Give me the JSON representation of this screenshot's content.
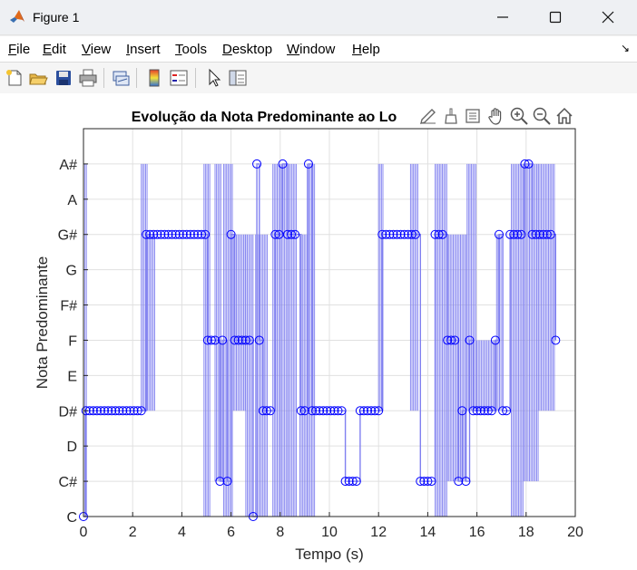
{
  "window": {
    "title": "Figure 1",
    "controls": [
      "minimize",
      "maximize",
      "close"
    ]
  },
  "menu": [
    {
      "label": "File",
      "u": "F",
      "rest": "ile"
    },
    {
      "label": "Edit",
      "u": "E",
      "rest": "dit"
    },
    {
      "label": "View",
      "u": "V",
      "rest": "iew"
    },
    {
      "label": "Insert",
      "u": "I",
      "rest": "nsert"
    },
    {
      "label": "Tools",
      "u": "T",
      "rest": "ools"
    },
    {
      "label": "Desktop",
      "u": "D",
      "rest": "esktop"
    },
    {
      "label": "Window",
      "u": "W",
      "rest": "indow"
    },
    {
      "label": "Help",
      "u": "H",
      "rest": "elp"
    }
  ],
  "toolbar_icons": [
    "new-figure-icon",
    "open-file-icon",
    "save-icon",
    "print-icon",
    "link-plot-icon",
    "insert-colorbar-icon",
    "insert-legend-icon",
    "edit-plot-arrow-icon",
    "property-inspector-icon"
  ],
  "axes_toolbar_icons": [
    "export-icon",
    "brush-icon",
    "data-tips-icon",
    "pan-icon",
    "zoom-in-icon",
    "zoom-out-icon",
    "home-icon"
  ],
  "chart_data": {
    "type": "line",
    "title": "Evolução da Nota Predominante ao Lo",
    "xlabel": "Tempo (s)",
    "ylabel": "Nota Predominante",
    "xlim": [
      0,
      20
    ],
    "xticks": [
      0,
      2,
      4,
      6,
      8,
      10,
      12,
      14,
      16,
      18,
      20
    ],
    "ylim": [
      0,
      11
    ],
    "yticklabels": [
      "C",
      "C#",
      "D",
      "D#",
      "E",
      "F",
      "F#",
      "G",
      "G#",
      "A",
      "A#"
    ],
    "grid": true,
    "line_color": "#8080f0",
    "marker_color": "#0000ff",
    "markers": [
      {
        "x": 0.0,
        "y": 0
      },
      {
        "x": 0.1,
        "y": 3
      },
      {
        "x": 0.25,
        "y": 3
      },
      {
        "x": 0.4,
        "y": 3
      },
      {
        "x": 0.55,
        "y": 3
      },
      {
        "x": 0.7,
        "y": 3
      },
      {
        "x": 0.85,
        "y": 3
      },
      {
        "x": 1.0,
        "y": 3
      },
      {
        "x": 1.15,
        "y": 3
      },
      {
        "x": 1.3,
        "y": 3
      },
      {
        "x": 1.45,
        "y": 3
      },
      {
        "x": 1.6,
        "y": 3
      },
      {
        "x": 1.75,
        "y": 3
      },
      {
        "x": 1.9,
        "y": 3
      },
      {
        "x": 2.05,
        "y": 3
      },
      {
        "x": 2.2,
        "y": 3
      },
      {
        "x": 2.35,
        "y": 3
      },
      {
        "x": 2.55,
        "y": 8
      },
      {
        "x": 2.7,
        "y": 8
      },
      {
        "x": 2.85,
        "y": 8
      },
      {
        "x": 3.0,
        "y": 8
      },
      {
        "x": 3.15,
        "y": 8
      },
      {
        "x": 3.3,
        "y": 8
      },
      {
        "x": 3.45,
        "y": 8
      },
      {
        "x": 3.6,
        "y": 8
      },
      {
        "x": 3.75,
        "y": 8
      },
      {
        "x": 3.9,
        "y": 8
      },
      {
        "x": 4.05,
        "y": 8
      },
      {
        "x": 4.2,
        "y": 8
      },
      {
        "x": 4.35,
        "y": 8
      },
      {
        "x": 4.5,
        "y": 8
      },
      {
        "x": 4.65,
        "y": 8
      },
      {
        "x": 4.8,
        "y": 8
      },
      {
        "x": 4.95,
        "y": 8
      },
      {
        "x": 5.05,
        "y": 5
      },
      {
        "x": 5.2,
        "y": 5
      },
      {
        "x": 5.35,
        "y": 5
      },
      {
        "x": 5.55,
        "y": 1
      },
      {
        "x": 5.65,
        "y": 5
      },
      {
        "x": 5.85,
        "y": 1
      },
      {
        "x": 6.0,
        "y": 8
      },
      {
        "x": 6.15,
        "y": 5
      },
      {
        "x": 6.3,
        "y": 5
      },
      {
        "x": 6.45,
        "y": 5
      },
      {
        "x": 6.6,
        "y": 5
      },
      {
        "x": 6.75,
        "y": 5
      },
      {
        "x": 6.9,
        "y": 0
      },
      {
        "x": 7.05,
        "y": 10
      },
      {
        "x": 7.15,
        "y": 5
      },
      {
        "x": 7.3,
        "y": 3
      },
      {
        "x": 7.45,
        "y": 3
      },
      {
        "x": 7.6,
        "y": 3
      },
      {
        "x": 7.8,
        "y": 8
      },
      {
        "x": 7.95,
        "y": 8
      },
      {
        "x": 8.1,
        "y": 10
      },
      {
        "x": 8.3,
        "y": 8
      },
      {
        "x": 8.45,
        "y": 8
      },
      {
        "x": 8.6,
        "y": 8
      },
      {
        "x": 8.85,
        "y": 3
      },
      {
        "x": 9.0,
        "y": 3
      },
      {
        "x": 9.15,
        "y": 10
      },
      {
        "x": 9.3,
        "y": 3
      },
      {
        "x": 9.45,
        "y": 3
      },
      {
        "x": 9.6,
        "y": 3
      },
      {
        "x": 9.75,
        "y": 3
      },
      {
        "x": 9.9,
        "y": 3
      },
      {
        "x": 10.05,
        "y": 3
      },
      {
        "x": 10.2,
        "y": 3
      },
      {
        "x": 10.35,
        "y": 3
      },
      {
        "x": 10.5,
        "y": 3
      },
      {
        "x": 10.65,
        "y": 1
      },
      {
        "x": 10.8,
        "y": 1
      },
      {
        "x": 10.95,
        "y": 1
      },
      {
        "x": 11.1,
        "y": 1
      },
      {
        "x": 11.25,
        "y": 3
      },
      {
        "x": 11.4,
        "y": 3
      },
      {
        "x": 11.55,
        "y": 3
      },
      {
        "x": 11.7,
        "y": 3
      },
      {
        "x": 11.85,
        "y": 3
      },
      {
        "x": 12.0,
        "y": 3
      },
      {
        "x": 12.15,
        "y": 8
      },
      {
        "x": 12.3,
        "y": 8
      },
      {
        "x": 12.45,
        "y": 8
      },
      {
        "x": 12.6,
        "y": 8
      },
      {
        "x": 12.75,
        "y": 8
      },
      {
        "x": 12.9,
        "y": 8
      },
      {
        "x": 13.05,
        "y": 8
      },
      {
        "x": 13.2,
        "y": 8
      },
      {
        "x": 13.35,
        "y": 8
      },
      {
        "x": 13.5,
        "y": 8
      },
      {
        "x": 13.7,
        "y": 1
      },
      {
        "x": 13.85,
        "y": 1
      },
      {
        "x": 14.0,
        "y": 1
      },
      {
        "x": 14.15,
        "y": 1
      },
      {
        "x": 14.3,
        "y": 8
      },
      {
        "x": 14.45,
        "y": 8
      },
      {
        "x": 14.6,
        "y": 8
      },
      {
        "x": 14.8,
        "y": 5
      },
      {
        "x": 14.95,
        "y": 5
      },
      {
        "x": 15.1,
        "y": 5
      },
      {
        "x": 15.25,
        "y": 1
      },
      {
        "x": 15.4,
        "y": 3
      },
      {
        "x": 15.55,
        "y": 1
      },
      {
        "x": 15.7,
        "y": 5
      },
      {
        "x": 15.85,
        "y": 3
      },
      {
        "x": 16.0,
        "y": 3
      },
      {
        "x": 16.15,
        "y": 3
      },
      {
        "x": 16.3,
        "y": 3
      },
      {
        "x": 16.45,
        "y": 3
      },
      {
        "x": 16.6,
        "y": 3
      },
      {
        "x": 16.75,
        "y": 5
      },
      {
        "x": 16.9,
        "y": 8
      },
      {
        "x": 17.05,
        "y": 3
      },
      {
        "x": 17.2,
        "y": 3
      },
      {
        "x": 17.35,
        "y": 8
      },
      {
        "x": 17.5,
        "y": 8
      },
      {
        "x": 17.65,
        "y": 8
      },
      {
        "x": 17.8,
        "y": 8
      },
      {
        "x": 17.95,
        "y": 10
      },
      {
        "x": 18.1,
        "y": 10
      },
      {
        "x": 18.25,
        "y": 8
      },
      {
        "x": 18.4,
        "y": 8
      },
      {
        "x": 18.55,
        "y": 8
      },
      {
        "x": 18.7,
        "y": 8
      },
      {
        "x": 18.85,
        "y": 8
      },
      {
        "x": 19.0,
        "y": 8
      },
      {
        "x": 19.2,
        "y": 5
      }
    ],
    "dense_bands": [
      {
        "x0": 0.0,
        "x1": 0.12,
        "y0": 0,
        "y1": 10
      },
      {
        "x0": 2.35,
        "x1": 2.6,
        "y0": 3,
        "y1": 10
      },
      {
        "x0": 2.6,
        "x1": 2.9,
        "y0": 3,
        "y1": 8
      },
      {
        "x0": 4.9,
        "x1": 5.15,
        "y0": 0,
        "y1": 10
      },
      {
        "x0": 5.35,
        "x1": 5.6,
        "y0": 1,
        "y1": 10
      },
      {
        "x0": 5.7,
        "x1": 6.1,
        "y0": 0,
        "y1": 10
      },
      {
        "x0": 6.1,
        "x1": 6.6,
        "y0": 3,
        "y1": 8
      },
      {
        "x0": 6.6,
        "x1": 6.9,
        "y0": 0,
        "y1": 8
      },
      {
        "x0": 7.0,
        "x1": 7.5,
        "y0": 0,
        "y1": 8
      },
      {
        "x0": 7.7,
        "x1": 8.0,
        "y0": 0,
        "y1": 10
      },
      {
        "x0": 8.0,
        "x1": 8.3,
        "y0": 0,
        "y1": 10
      },
      {
        "x0": 8.3,
        "x1": 8.7,
        "y0": 0,
        "y1": 10
      },
      {
        "x0": 8.8,
        "x1": 9.1,
        "y0": 0,
        "y1": 8
      },
      {
        "x0": 9.1,
        "x1": 9.4,
        "y0": 0,
        "y1": 10
      },
      {
        "x0": 12.0,
        "x1": 12.2,
        "y0": 3,
        "y1": 10
      },
      {
        "x0": 13.3,
        "x1": 13.6,
        "y0": 3,
        "y1": 10
      },
      {
        "x0": 14.3,
        "x1": 14.8,
        "y0": 0,
        "y1": 10
      },
      {
        "x0": 14.8,
        "x1": 15.6,
        "y0": 1,
        "y1": 8
      },
      {
        "x0": 15.6,
        "x1": 16.0,
        "y0": 3,
        "y1": 10
      },
      {
        "x0": 16.0,
        "x1": 16.8,
        "y0": 3,
        "y1": 5
      },
      {
        "x0": 16.8,
        "x1": 17.0,
        "y0": 3,
        "y1": 8
      },
      {
        "x0": 17.4,
        "x1": 17.9,
        "y0": 0,
        "y1": 10
      },
      {
        "x0": 17.9,
        "x1": 18.5,
        "y0": 1,
        "y1": 10
      },
      {
        "x0": 18.5,
        "x1": 19.2,
        "y0": 3,
        "y1": 10
      }
    ]
  }
}
